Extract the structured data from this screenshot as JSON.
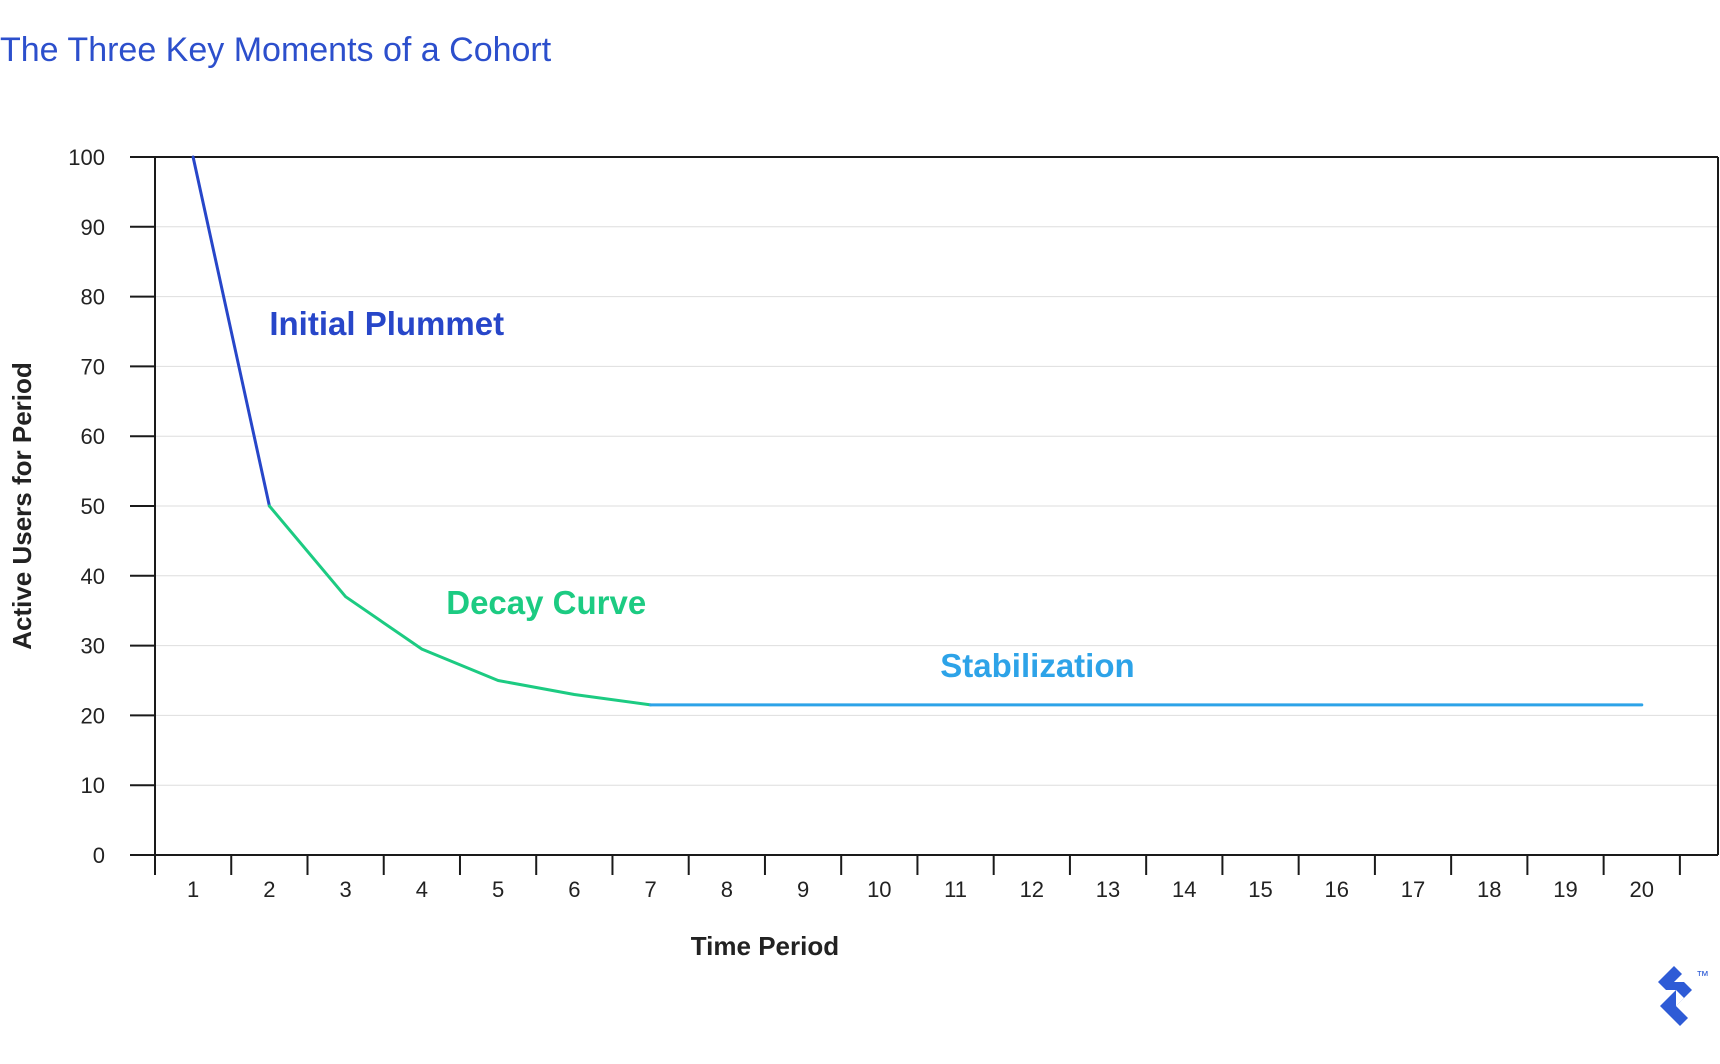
{
  "title": "The Three Key Moments of a Cohort",
  "colors": {
    "title": "#2C4FCC",
    "axis": "#1a1a1a",
    "grid": "#dedede",
    "plummet": "#2746C9",
    "decay": "#1CCB82",
    "stabilization": "#2DA3E8",
    "logo": "#2E5BD6"
  },
  "logo": {
    "icon": "toptal-logo-icon",
    "mark": "™"
  },
  "chart_data": {
    "type": "line",
    "title": "The Three Key Moments of a Cohort",
    "xlabel": "Time Period",
    "ylabel": "Active Users for Period",
    "x_ticks": [
      "1",
      "2",
      "3",
      "4",
      "5",
      "6",
      "7",
      "8",
      "9",
      "10",
      "11",
      "12",
      "13",
      "14",
      "15",
      "16",
      "17",
      "18",
      "19",
      "20"
    ],
    "y_ticks": [
      "0",
      "10",
      "20",
      "30",
      "40",
      "50",
      "60",
      "70",
      "80",
      "90",
      "100"
    ],
    "xlim": [
      0.5,
      21
    ],
    "ylim": [
      0,
      100
    ],
    "grid": true,
    "series": [
      {
        "name": "Initial Plummet",
        "color": "#2746C9",
        "points": [
          [
            1,
            100
          ],
          [
            2,
            50
          ]
        ]
      },
      {
        "name": "Decay Curve",
        "color": "#1CCB82",
        "points": [
          [
            2,
            50
          ],
          [
            3,
            37
          ],
          [
            4,
            29.5
          ],
          [
            5,
            25
          ],
          [
            6,
            23
          ],
          [
            7,
            21.5
          ]
        ]
      },
      {
        "name": "Stabilization",
        "color": "#2DA3E8",
        "points": [
          [
            7,
            21.5
          ],
          [
            20,
            21.5
          ]
        ]
      }
    ],
    "annotations": [
      {
        "text": "Initial Plummet",
        "x": 2,
        "y": 74.5,
        "color": "#2746C9"
      },
      {
        "text": "Decay Curve",
        "x": 4.32,
        "y": 34.5,
        "color": "#1CCB82"
      },
      {
        "text": "Stabilization",
        "x": 10.8,
        "y": 25.5,
        "color": "#2DA3E8"
      }
    ]
  }
}
